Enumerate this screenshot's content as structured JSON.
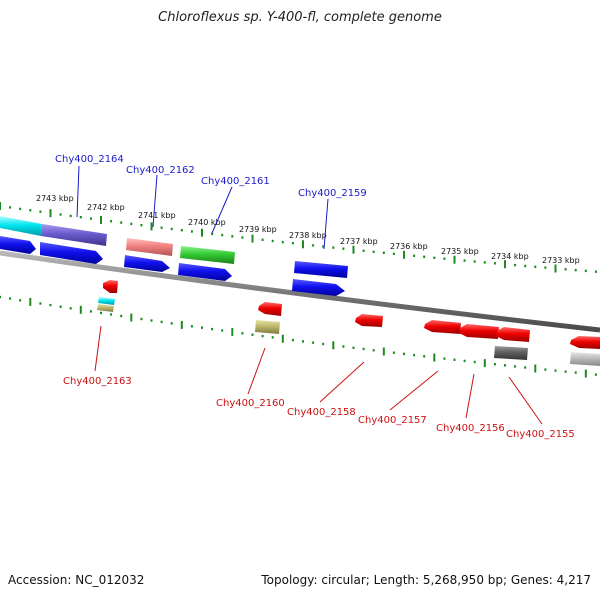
{
  "title": "Chloroflexus sp. Y-400-fl, complete genome",
  "footer": {
    "accession": "Accession: NC_012032",
    "summary": "Topology: circular; Length: 5,268,950 bp; Genes: 4,217"
  },
  "colors": {
    "forward_label": "#1a1acc",
    "reverse_label": "#cc1111",
    "tick": "#1e8a1e",
    "backbone": "#7a7a7a"
  },
  "scale_labels": [
    "2743 kbp",
    "2742 kbp",
    "2741 kbp",
    "2740 kbp",
    "2739 kbp",
    "2738 kbp",
    "2737 kbp",
    "2736 kbp",
    "2735 kbp",
    "2734 kbp",
    "2733 kbp"
  ],
  "forward_gene_labels": [
    "Chy400_2164",
    "Chy400_2162",
    "Chy400_2161",
    "Chy400_2159"
  ],
  "reverse_gene_labels": [
    "Chy400_2163",
    "Chy400_2160",
    "Chy400_2158",
    "Chy400_2157",
    "Chy400_2156",
    "Chy400_2155"
  ]
}
